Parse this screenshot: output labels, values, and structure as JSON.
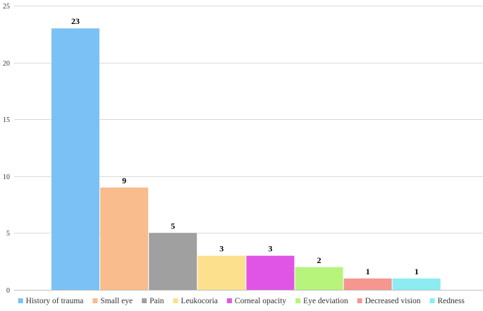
{
  "chart_data": {
    "type": "bar",
    "categories": [
      "History of trauma",
      "Small eye",
      "Pain",
      "Leukocoria",
      "Corneal opacity",
      "Eye deviation",
      "Decreased vision",
      "Redness"
    ],
    "values": [
      23,
      9,
      5,
      3,
      3,
      2,
      1,
      1
    ],
    "colors": [
      "#7cc1f5",
      "#f9bc8c",
      "#a0a0a0",
      "#fce08e",
      "#e055e6",
      "#b6f47c",
      "#f59690",
      "#8cecf0"
    ],
    "ylim": [
      0,
      25
    ],
    "yticks": [
      0,
      5,
      10,
      15,
      20,
      25
    ],
    "grid": true,
    "legend_position": "bottom",
    "data_labels": true
  }
}
